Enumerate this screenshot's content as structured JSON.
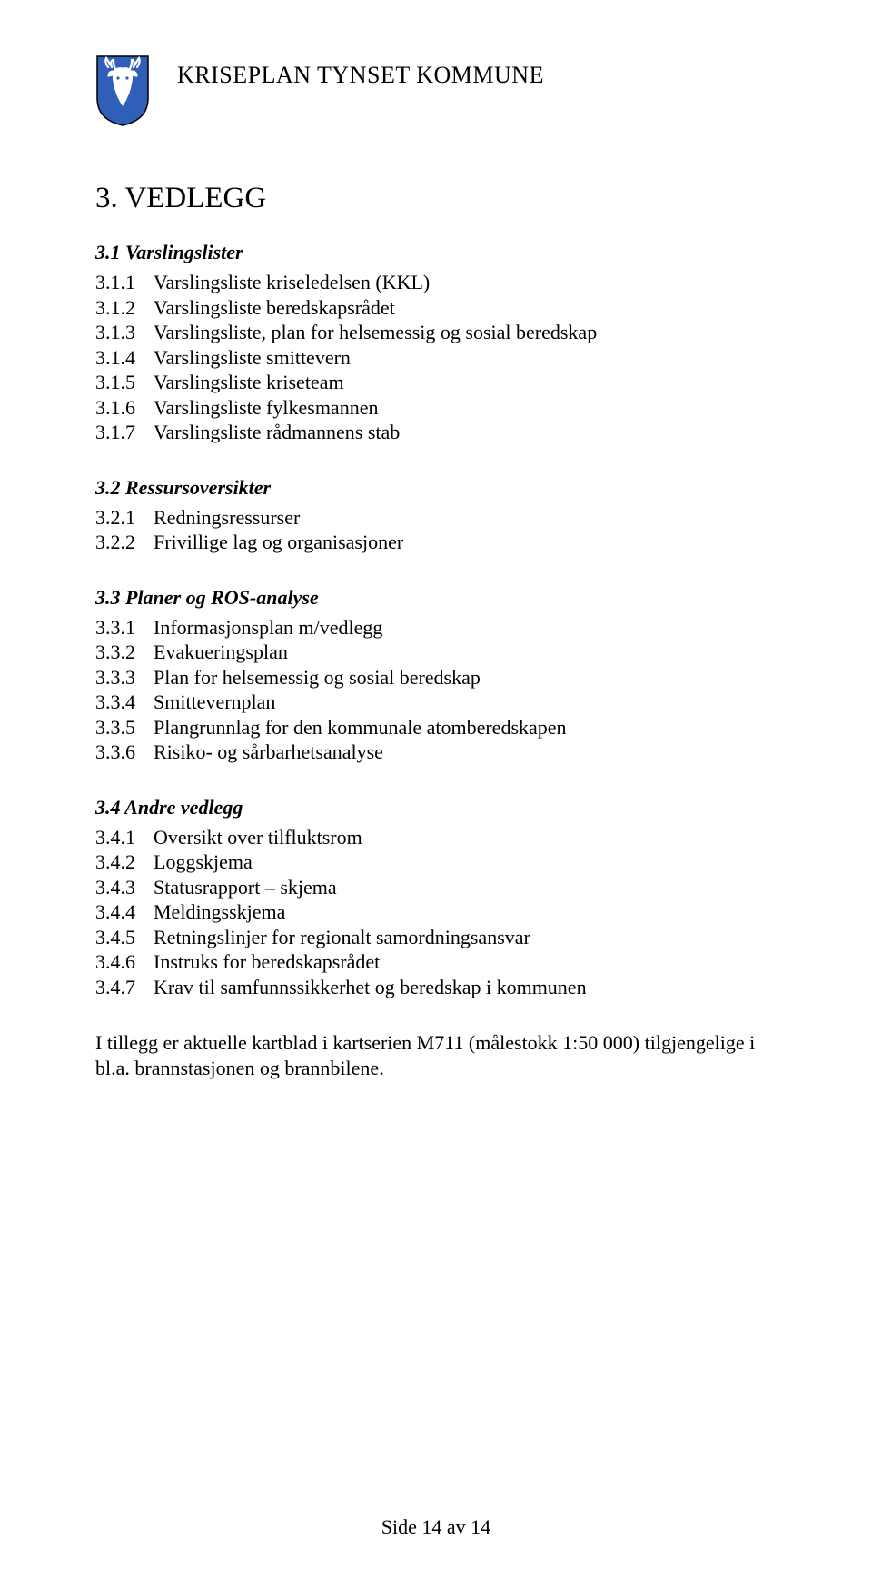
{
  "header": {
    "title": "KRISEPLAN TYNSET KOMMUNE",
    "shield": {
      "field_color": "#2f5fb8",
      "border_color": "#000000",
      "charge_color": "#ffffff"
    }
  },
  "title": "3. VEDLEGG",
  "sections": [
    {
      "heading": "3.1 Varslingslister",
      "items": [
        {
          "num": "3.1.1",
          "text": "Varslingsliste kriseledelsen (KKL)"
        },
        {
          "num": "3.1.2",
          "text": "Varslingsliste beredskapsrådet"
        },
        {
          "num": "3.1.3",
          "text": "Varslingsliste, plan for helsemessig og sosial beredskap"
        },
        {
          "num": "3.1.4",
          "text": "Varslingsliste smittevern"
        },
        {
          "num": "3.1.5",
          "text": "Varslingsliste kriseteam"
        },
        {
          "num": "3.1.6",
          "text": "Varslingsliste fylkesmannen"
        },
        {
          "num": "3.1.7",
          "text": "Varslingsliste rådmannens stab"
        }
      ]
    },
    {
      "heading": "3.2 Ressursoversikter",
      "items": [
        {
          "num": "3.2.1",
          "text": "Redningsressurser"
        },
        {
          "num": "3.2.2",
          "text": "Frivillige lag og organisasjoner"
        }
      ]
    },
    {
      "heading": "3.3 Planer og ROS-analyse",
      "items": [
        {
          "num": "3.3.1",
          "text": "Informasjonsplan m/vedlegg"
        },
        {
          "num": "3.3.2",
          "text": "Evakueringsplan"
        },
        {
          "num": "3.3.3",
          "text": "Plan for helsemessig og sosial beredskap"
        },
        {
          "num": "3.3.4",
          "text": "Smittevernplan"
        },
        {
          "num": "3.3.5",
          "text": "Plangrunnlag for den kommunale atomberedskapen"
        },
        {
          "num": "3.3.6",
          "text": "Risiko- og sårbarhetsanalyse"
        }
      ]
    },
    {
      "heading": "3.4 Andre vedlegg",
      "items": [
        {
          "num": "3.4.1",
          "text": "Oversikt over tilfluktsrom"
        },
        {
          "num": "3.4.2",
          "text": "Loggskjema"
        },
        {
          "num": "3.4.3",
          "text": "Statusrapport – skjema"
        },
        {
          "num": "3.4.4",
          "text": "Meldingsskjema"
        },
        {
          "num": "3.4.5",
          "text": "Retningslinjer for regionalt samordningsansvar"
        },
        {
          "num": "3.4.6",
          "text": "Instruks for beredskapsrådet"
        },
        {
          "num": "3.4.7",
          "text": "Krav til samfunnssikkerhet og beredskap i kommunen"
        }
      ]
    }
  ],
  "trailing_paragraph": "I tillegg er aktuelle kartblad i kartserien M711 (målestokk 1:50 000) tilgjengelige i bl.a. brannstasjonen og brannbilene.",
  "footer": "Side 14 av 14"
}
